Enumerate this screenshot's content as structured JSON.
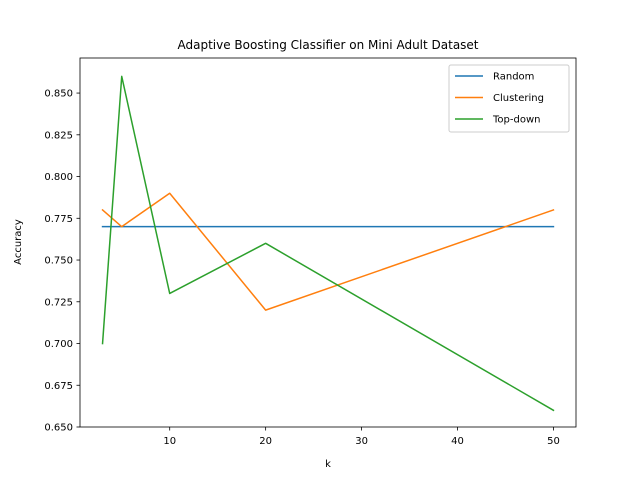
{
  "chart_data": {
    "type": "line",
    "title": "Adaptive Boosting Classifier on Mini Adult Dataset",
    "xlabel": "k",
    "ylabel": "Accuracy",
    "x": [
      3,
      5,
      10,
      20,
      50
    ],
    "xlim": [
      0.65,
      52.35
    ],
    "ylim": [
      0.65,
      0.871
    ],
    "xticks": [
      10,
      20,
      30,
      40,
      50
    ],
    "xtick_labels": [
      "10",
      "20",
      "30",
      "40",
      "50"
    ],
    "yticks": [
      0.65,
      0.675,
      0.7,
      0.725,
      0.75,
      0.775,
      0.8,
      0.825,
      0.85
    ],
    "ytick_labels": [
      "0.650",
      "0.675",
      "0.700",
      "0.725",
      "0.750",
      "0.775",
      "0.800",
      "0.825",
      "0.850"
    ],
    "grid": false,
    "legend_position": "top-right",
    "series": [
      {
        "name": "Random",
        "color": "#1f77b4",
        "values": [
          0.77,
          0.77,
          0.77,
          0.77,
          0.77
        ]
      },
      {
        "name": "Clustering",
        "color": "#ff7f0e",
        "values": [
          0.78,
          0.77,
          0.79,
          0.72,
          0.78
        ]
      },
      {
        "name": "Top-down",
        "color": "#2ca02c",
        "values": [
          0.7,
          0.86,
          0.73,
          0.76,
          0.66
        ]
      }
    ]
  }
}
